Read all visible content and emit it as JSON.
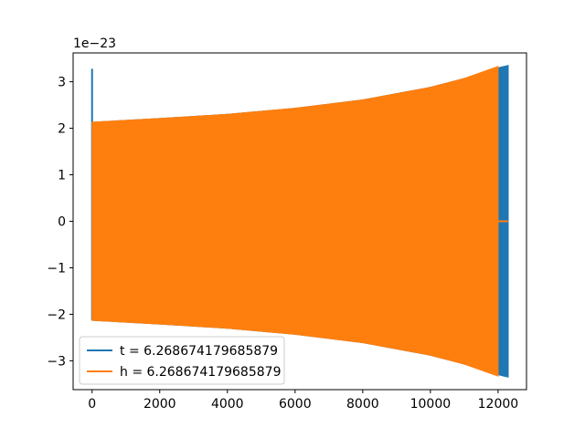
{
  "chart_data": {
    "type": "line",
    "title": "",
    "xlabel": "",
    "ylabel": "",
    "y_offset_label": "1e−23",
    "xlim": [
      -560,
      12840
    ],
    "ylim": [
      -3.62,
      3.62
    ],
    "x_ticks": [
      {
        "value": 0,
        "label": "0"
      },
      {
        "value": 2000,
        "label": "2000"
      },
      {
        "value": 4000,
        "label": "4000"
      },
      {
        "value": 6000,
        "label": "6000"
      },
      {
        "value": 8000,
        "label": "8000"
      },
      {
        "value": 10000,
        "label": "10000"
      },
      {
        "value": 12000,
        "label": "12000"
      }
    ],
    "y_ticks": [
      {
        "value": 3,
        "label": "3"
      },
      {
        "value": 2,
        "label": "2"
      },
      {
        "value": 1,
        "label": "1"
      },
      {
        "value": 0,
        "label": "0"
      },
      {
        "value": -1,
        "label": "−1"
      },
      {
        "value": -2,
        "label": "−2"
      },
      {
        "value": -3,
        "label": "−3"
      }
    ],
    "grid": false,
    "legend_position": "lower-left",
    "series": [
      {
        "name": "t = 6.268674179685879",
        "color": "#1f77b4",
        "spike": {
          "x": 0,
          "y_max": 3.28,
          "y_min": -2.13
        },
        "envelope": [
          {
            "x": 0,
            "amp": 2.13
          },
          {
            "x": 2000,
            "amp": 2.21
          },
          {
            "x": 4000,
            "amp": 2.3
          },
          {
            "x": 6000,
            "amp": 2.43
          },
          {
            "x": 8000,
            "amp": 2.61
          },
          {
            "x": 10000,
            "amp": 2.88
          },
          {
            "x": 11000,
            "amp": 3.07
          },
          {
            "x": 12000,
            "amp": 3.3
          },
          {
            "x": 12300,
            "amp": 3.35
          }
        ],
        "end_x": 12300
      },
      {
        "name": "h = 6.268674179685879",
        "color": "#ff7f0e",
        "envelope": [
          {
            "x": 0,
            "amp": 2.13
          },
          {
            "x": 2000,
            "amp": 2.21
          },
          {
            "x": 4000,
            "amp": 2.3
          },
          {
            "x": 6000,
            "amp": 2.43
          },
          {
            "x": 8000,
            "amp": 2.61
          },
          {
            "x": 10000,
            "amp": 2.88
          },
          {
            "x": 11000,
            "amp": 3.07
          },
          {
            "x": 12000,
            "amp": 3.33
          }
        ],
        "end_x": 12000,
        "tail": {
          "x_start": 12000,
          "x_end": 12300,
          "y": 0
        }
      }
    ]
  }
}
